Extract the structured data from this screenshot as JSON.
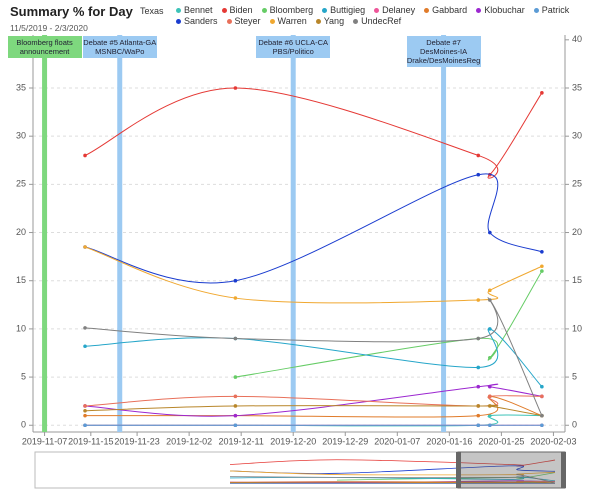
{
  "chart_data": {
    "type": "line",
    "title": "Summary % for Day",
    "subtitle": "11/5/2019 - 2/3/2020",
    "filter": "Texas",
    "x": [
      "2019-11-14",
      "2019-12-10",
      "2020-01-21",
      "2020-01-23",
      "2020-02-01"
    ],
    "xlim": [
      "2019-11-05",
      "2020-02-05"
    ],
    "xticks": [
      "2019-11-07",
      "2019-11-15",
      "2019-11-23",
      "2019-12-02",
      "2019-12-11",
      "2019-12-20",
      "2019-12-29",
      "2020-01-07",
      "2020-01-16",
      "2020-01-25",
      "2020-02-03"
    ],
    "ylim": [
      -0.7,
      40.5
    ],
    "yticks": [
      0,
      5,
      10,
      15,
      20,
      25,
      30,
      35
    ],
    "y2lim": [
      -0.7,
      40.5
    ],
    "y2ticks": [
      0,
      5,
      10,
      15,
      20,
      25,
      30,
      35,
      40
    ],
    "grid": true,
    "series": [
      {
        "name": "Bennet",
        "color": "#3cc3b8",
        "values": [
          0,
          0,
          0,
          1,
          1
        ]
      },
      {
        "name": "Biden",
        "color": "#e53935",
        "values": [
          28,
          35,
          28,
          26,
          34.5
        ]
      },
      {
        "name": "Bloomberg",
        "color": "#66cc66",
        "values": [
          null,
          5,
          9,
          7,
          16
        ]
      },
      {
        "name": "Buttigieg",
        "color": "#26a6c9",
        "values": [
          8.2,
          9,
          6,
          10,
          4
        ]
      },
      {
        "name": "Delaney",
        "color": "#ee5599",
        "values": [
          0,
          0,
          0,
          0,
          0
        ]
      },
      {
        "name": "Gabbard",
        "color": "#e07b2a",
        "values": [
          1,
          1,
          1,
          3,
          1
        ]
      },
      {
        "name": "Klobuchar",
        "color": "#9c27d0",
        "values": [
          2,
          1,
          4,
          4,
          3
        ]
      },
      {
        "name": "Patrick",
        "color": "#5b9bd5",
        "values": [
          0,
          0,
          0,
          0,
          0
        ]
      },
      {
        "name": "Sanders",
        "color": "#1a3ccf",
        "values": [
          18.5,
          15,
          26,
          20,
          18
        ]
      },
      {
        "name": "Steyer",
        "color": "#e8705a",
        "values": [
          2,
          3,
          2,
          3,
          3
        ]
      },
      {
        "name": "Warren",
        "color": "#f0a830",
        "values": [
          18.5,
          13.2,
          13,
          14,
          16.5
        ]
      },
      {
        "name": "Yang",
        "color": "#b8862a",
        "values": [
          1.5,
          2,
          2,
          2,
          1
        ]
      },
      {
        "name": "UndecRef",
        "color": "#808080",
        "values": [
          10.1,
          9,
          9,
          13,
          1
        ]
      }
    ],
    "annotations": [
      {
        "x": "2019-11-07",
        "label": "Bloomberg floats announcement",
        "color": "#7ed87e"
      },
      {
        "x": "2019-11-20",
        "label": "Debate #5 Atlanta-GA MSNBC/WaPo",
        "color": "#9ccaf2"
      },
      {
        "x": "2019-12-20",
        "label": "Debate #6 UCLA-CA PBS/Politico",
        "color": "#9ccaf2"
      },
      {
        "x": "2020-01-15",
        "label": "Debate #7 DesMoines-IA Drake/DesMoinesReg",
        "color": "#9ccaf2"
      }
    ]
  }
}
